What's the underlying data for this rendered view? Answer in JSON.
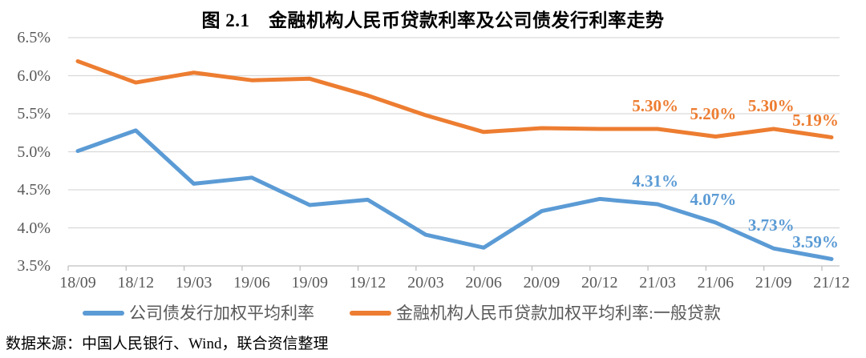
{
  "figure": {
    "title": "图 2.1　金融机构人民币贷款利率及公司债发行利率走势",
    "source_note": "数据来源：中国人民银行、Wind，联合资信整理"
  },
  "colors": {
    "bond_series": "#5B9BD5",
    "loan_series": "#ED7D31",
    "gridline": "#D9D9D9",
    "axis_line": "#C0C0C0",
    "axis_label": "#595959"
  },
  "chart_data": {
    "type": "line",
    "title": "图 2.1　金融机构人民币贷款利率及公司债发行利率走势",
    "categories": [
      "18/09",
      "18/12",
      "19/03",
      "19/06",
      "19/09",
      "19/12",
      "20/03",
      "20/06",
      "20/09",
      "20/12",
      "21/03",
      "21/06",
      "21/09",
      "21/12"
    ],
    "series": [
      {
        "name": "公司债发行加权平均利率",
        "color": "#5B9BD5",
        "values": [
          5.01,
          5.28,
          4.58,
          4.66,
          4.3,
          4.37,
          3.91,
          3.74,
          4.22,
          4.38,
          4.31,
          4.07,
          3.73,
          3.59
        ],
        "point_labels": [
          {
            "index": 10,
            "text": "4.31%"
          },
          {
            "index": 11,
            "text": "4.07%"
          },
          {
            "index": 12,
            "text": "3.73%"
          },
          {
            "index": 13,
            "text": "3.59%"
          }
        ]
      },
      {
        "name": "金融机构人民币贷款加权平均利率:一般贷款",
        "color": "#ED7D31",
        "values": [
          6.19,
          5.91,
          6.04,
          5.94,
          5.96,
          5.74,
          5.48,
          5.26,
          5.31,
          5.3,
          5.3,
          5.2,
          5.3,
          5.19
        ],
        "point_labels": [
          {
            "index": 10,
            "text": "5.30%"
          },
          {
            "index": 11,
            "text": "5.20%"
          },
          {
            "index": 12,
            "text": "5.30%"
          },
          {
            "index": 13,
            "text": "5.19%"
          }
        ]
      }
    ],
    "ylim": [
      3.5,
      6.5
    ],
    "ytick_labels": [
      "6.5%",
      "6.0%",
      "5.5%",
      "5.0%",
      "4.5%",
      "4.0%",
      "3.5%"
    ],
    "grid": "horizontal",
    "legend_position": "bottom"
  }
}
